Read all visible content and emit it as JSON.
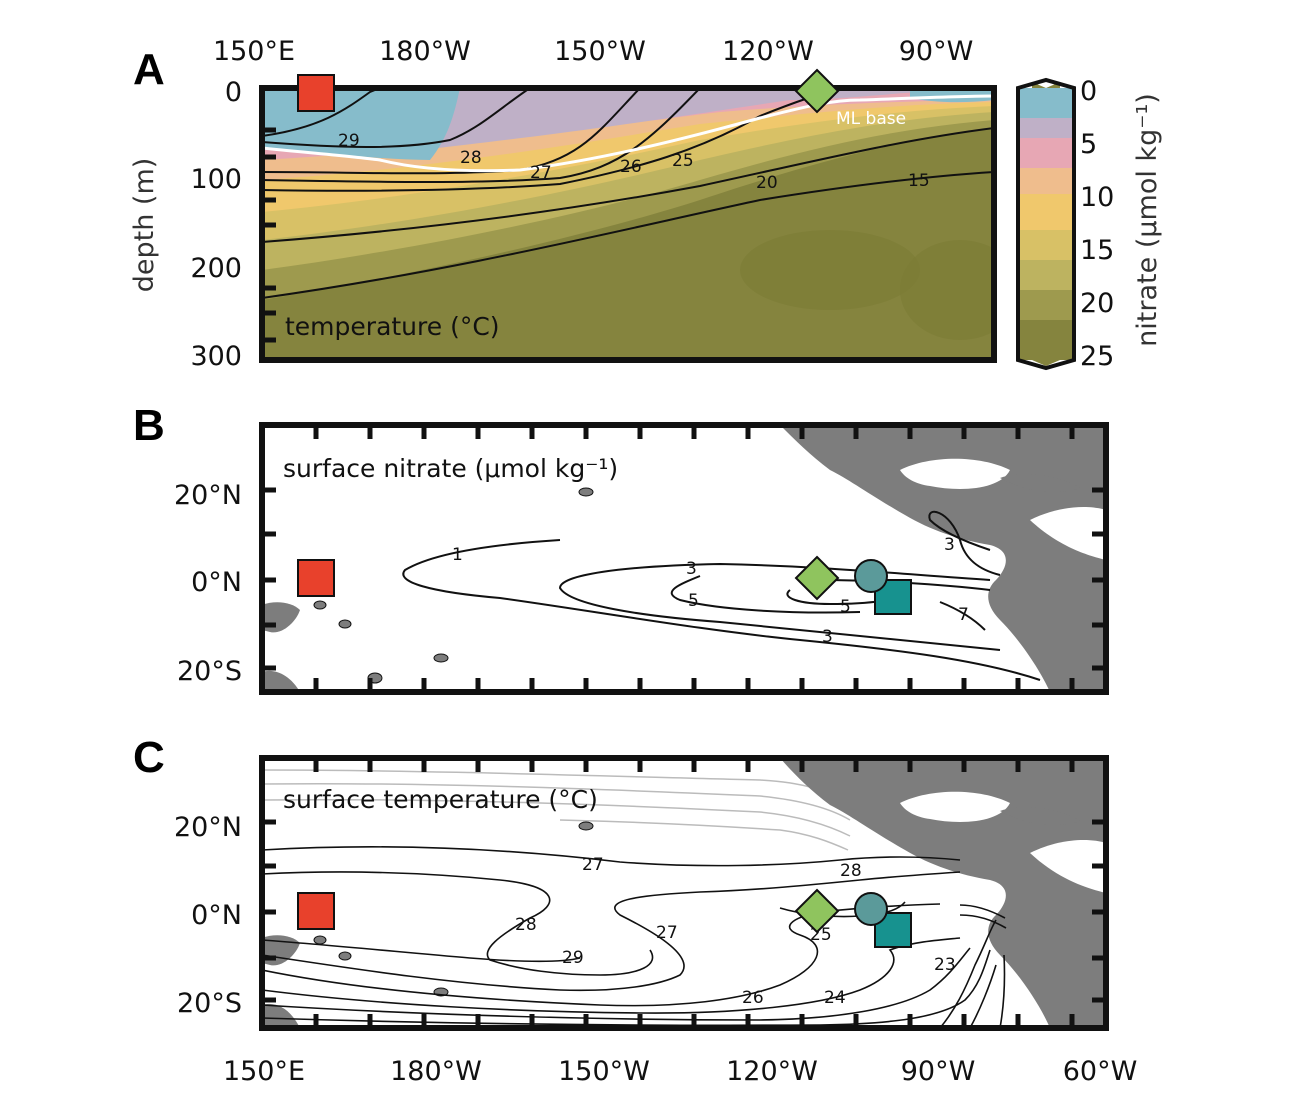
{
  "panels": {
    "a": {
      "letter": "A",
      "y_axis_label": "depth (m)",
      "y_ticks": [
        "0",
        "100",
        "200",
        "300"
      ],
      "x_ticks": [
        "150°E",
        "180°W",
        "150°W",
        "120°W",
        "90°W"
      ],
      "inset_label": "temperature (°C)",
      "ml_label": "ML base",
      "contour_labels": [
        "29",
        "28",
        "27",
        "26",
        "25",
        "20",
        "15"
      ],
      "colorbar": {
        "label": "nitrate (μmol kg⁻¹)",
        "ticks": [
          "0",
          "5",
          "10",
          "15",
          "20",
          "25"
        ],
        "colors": [
          "#86bccb",
          "#bfb0c7",
          "#e7a7b4",
          "#efbd8d",
          "#f0c86c",
          "#d8c166",
          "#bdb360",
          "#9e9a4e",
          "#85843e"
        ]
      }
    },
    "b": {
      "letter": "B",
      "title": "surface nitrate (μmol kg⁻¹)",
      "y_ticks": [
        "20°N",
        "0°N",
        "20°S"
      ],
      "contour_labels": [
        "1",
        "3",
        "3",
        "5",
        "5",
        "7",
        "3"
      ]
    },
    "c": {
      "letter": "C",
      "title": "surface temperature (°C)",
      "y_ticks": [
        "20°N",
        "0°N",
        "20°S"
      ],
      "x_ticks": [
        "150°E",
        "180°W",
        "150°W",
        "120°W",
        "90°W",
        "60°W"
      ],
      "contour_labels": [
        "27",
        "28",
        "28",
        "27",
        "29",
        "25",
        "23",
        "26",
        "24"
      ]
    }
  },
  "markers": {
    "square_red": "#e8412c",
    "diamond_green": "#8fc45e",
    "circle_teal": "#5b9a9a",
    "square_teal": "#17928f",
    "land": "#7d7d7d"
  }
}
